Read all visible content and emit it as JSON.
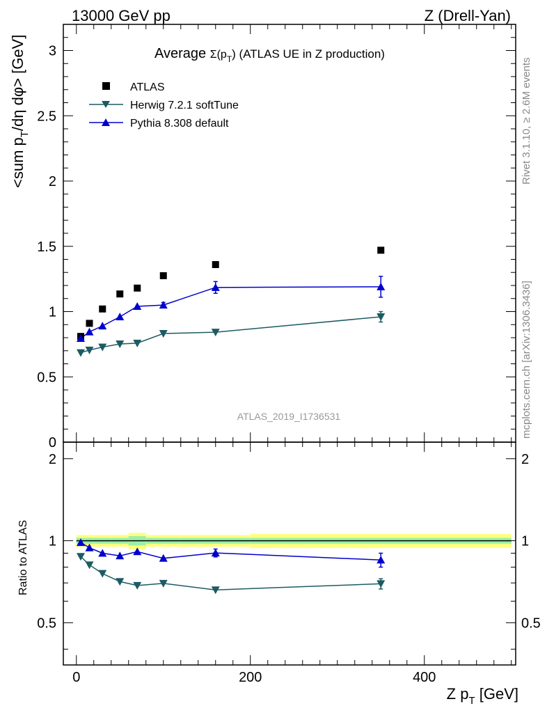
{
  "header": {
    "left": "13000 GeV pp",
    "right": "Z (Drell-Yan)"
  },
  "side": {
    "rivet": "Rivet 3.1.10, ≥ 2.6M events",
    "mcplots": "mcplots.cern.ch [arXiv:1306.3436]"
  },
  "main_plot": {
    "title_prefix": "Average ",
    "title_sigma": "Σ(p",
    "title_sub": "T",
    "title_suffix": ") (ATLAS UE in Z production)",
    "ylabel_part1": "<sum p",
    "ylabel_sub": "T",
    "ylabel_part2": "/dη dφ> [GeV]",
    "watermark": "ATLAS_2019_I1736531",
    "yticks": [
      "0",
      "0.5",
      "1",
      "1.5",
      "2",
      "2.5",
      "3"
    ]
  },
  "ratio_plot": {
    "ylabel": "Ratio to ATLAS",
    "yticks": [
      "0.5",
      "1",
      "2"
    ]
  },
  "xaxis": {
    "label_main": "Z p",
    "label_sub": "T",
    "label_unit": " [GeV]",
    "ticks": [
      "0",
      "200",
      "400"
    ]
  },
  "legend": [
    {
      "label": "ATLAS",
      "marker": "square",
      "color": "#000000"
    },
    {
      "label": "Herwig 7.2.1 softTune",
      "marker": "triangle-down",
      "color": "#1c5b63"
    },
    {
      "label": "Pythia 8.308 default",
      "marker": "triangle-up",
      "color": "#0000cc"
    }
  ],
  "chart_data": [
    {
      "type": "scatter",
      "title": "Average Σ(pT) (ATLAS UE in Z production)",
      "xlabel": "Z pT [GeV]",
      "ylabel": "<sum pT/dη dφ> [GeV]",
      "xlim": [
        -15,
        505
      ],
      "ylim": [
        0,
        3.2
      ],
      "x": [
        5,
        15,
        30,
        50,
        70,
        100,
        160,
        350
      ],
      "series": [
        {
          "name": "ATLAS",
          "values": [
            0.81,
            0.91,
            1.02,
            1.135,
            1.18,
            1.275,
            1.36,
            1.47
          ],
          "errors": [
            0.01,
            0.01,
            0.01,
            0.01,
            0.01,
            0.01,
            0.01,
            0.01
          ]
        },
        {
          "name": "Herwig 7.2.1 softTune",
          "values": [
            0.685,
            0.705,
            0.728,
            0.752,
            0.758,
            0.832,
            0.842,
            0.96
          ],
          "errors": [
            0.005,
            0.005,
            0.005,
            0.006,
            0.008,
            0.01,
            0.012,
            0.04
          ]
        },
        {
          "name": "Pythia 8.308 default",
          "values": [
            0.795,
            0.845,
            0.89,
            0.96,
            1.04,
            1.05,
            1.185,
            1.19
          ],
          "errors": [
            0.005,
            0.005,
            0.006,
            0.008,
            0.01,
            0.02,
            0.045,
            0.08
          ]
        }
      ],
      "legend": "top-left",
      "grid": false
    },
    {
      "type": "scatter",
      "ylabel": "Ratio to ATLAS",
      "xlabel": "Z pT [GeV]",
      "xlim": [
        -15,
        505
      ],
      "ylim": [
        0.35,
        2.3
      ],
      "yscale": "log",
      "x": [
        5,
        15,
        30,
        50,
        70,
        100,
        160,
        350
      ],
      "reference_band": {
        "edges": [
          0,
          10,
          20,
          40,
          60,
          80,
          120,
          200,
          500
        ],
        "inner": [
          0.025,
          0.025,
          0.025,
          0.025,
          0.04,
          0.025,
          0.025,
          0.025
        ],
        "outer": [
          0.05,
          0.05,
          0.05,
          0.05,
          0.07,
          0.05,
          0.05,
          0.06
        ]
      },
      "series": [
        {
          "name": "Herwig 7.2.1 softTune",
          "values": [
            0.875,
            0.815,
            0.758,
            0.708,
            0.685,
            0.697,
            0.66,
            0.695
          ],
          "errors": [
            0.005,
            0.005,
            0.005,
            0.006,
            0.008,
            0.01,
            0.01,
            0.03
          ]
        },
        {
          "name": "Pythia 8.308 default",
          "values": [
            0.985,
            0.942,
            0.9,
            0.88,
            0.912,
            0.862,
            0.902,
            0.85
          ],
          "errors": [
            0.005,
            0.005,
            0.006,
            0.008,
            0.01,
            0.012,
            0.03,
            0.05
          ]
        }
      ],
      "grid": false
    }
  ]
}
